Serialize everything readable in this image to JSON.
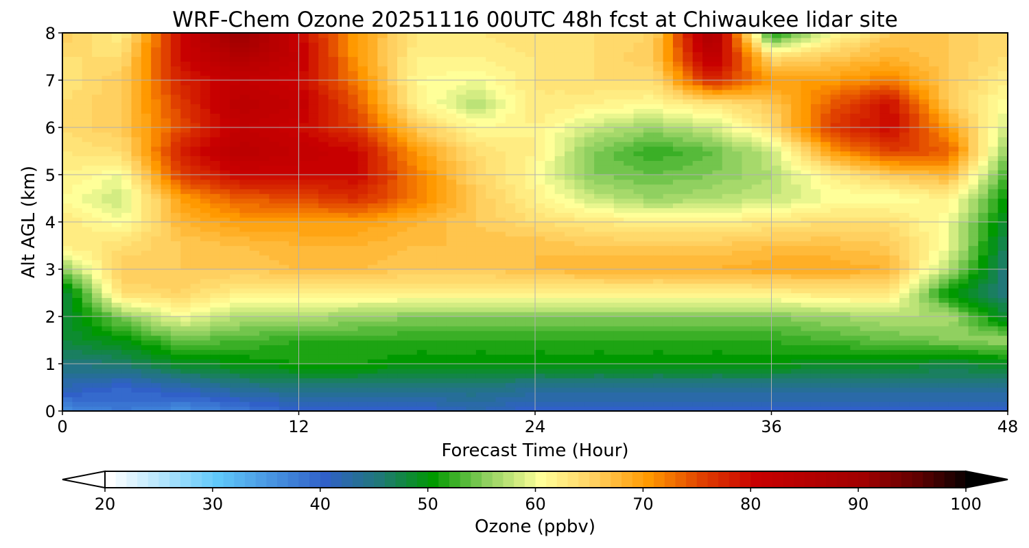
{
  "chart_data": {
    "type": "heatmap",
    "title": "WRF-Chem Ozone  20251116 00UTC 48h fcst at Chiwaukee lidar site",
    "xlabel": "Forecast Time (Hour)",
    "ylabel": "Alt AGL (km)",
    "xlim": [
      0,
      48
    ],
    "ylim": [
      0,
      8
    ],
    "xticks": [
      "0",
      "12",
      "24",
      "36",
      "48"
    ],
    "yticks": [
      "0",
      "1",
      "2",
      "3",
      "4",
      "5",
      "6",
      "7",
      "8"
    ],
    "grid": true,
    "x": [
      0,
      3,
      6,
      9,
      12,
      15,
      18,
      21,
      24,
      27,
      30,
      33,
      36,
      39,
      42,
      45,
      48
    ],
    "y": [
      0,
      0.5,
      1,
      1.5,
      2,
      2.5,
      3,
      3.5,
      4,
      4.5,
      5,
      5.5,
      6,
      6.5,
      7,
      7.5,
      8
    ],
    "z": [
      [
        36,
        38,
        36,
        38,
        40,
        40,
        40,
        42,
        40,
        40,
        40,
        40,
        40,
        40,
        40,
        40,
        40
      ],
      [
        42,
        40,
        42,
        44,
        45,
        45,
        45,
        45,
        44,
        44,
        44,
        44,
        44,
        44,
        44,
        44,
        44
      ],
      [
        45,
        46,
        49,
        50,
        51,
        51,
        50,
        50,
        50,
        50,
        50,
        50,
        50,
        49,
        49,
        48,
        49
      ],
      [
        48,
        50,
        54,
        53,
        52,
        52,
        52,
        52,
        52,
        52,
        52,
        52,
        52,
        53,
        54,
        55,
        56
      ],
      [
        48,
        55,
        60,
        57,
        57,
        56,
        55,
        55,
        55,
        55,
        55,
        55,
        55,
        56,
        57,
        57,
        48
      ],
      [
        47,
        64,
        65,
        62,
        62,
        62,
        62,
        62,
        62,
        62,
        62,
        62,
        62,
        63,
        63,
        50,
        45
      ],
      [
        55,
        66,
        66,
        66,
        67,
        67,
        66,
        66,
        67,
        68,
        68,
        68,
        69,
        69,
        68,
        57,
        45
      ],
      [
        62,
        64,
        66,
        67,
        68,
        68,
        67,
        67,
        67,
        66,
        66,
        66,
        67,
        67,
        66,
        60,
        46
      ],
      [
        63,
        60,
        68,
        70,
        70,
        70,
        68,
        66,
        64,
        63,
        62,
        62,
        63,
        64,
        64,
        60,
        48
      ],
      [
        61,
        58,
        70,
        74,
        75,
        77,
        72,
        66,
        62,
        58,
        56,
        57,
        58,
        60,
        60,
        62,
        50
      ],
      [
        62,
        60,
        76,
        80,
        80,
        80,
        72,
        65,
        61,
        55,
        54,
        55,
        57,
        62,
        66,
        68,
        52
      ],
      [
        63,
        64,
        78,
        84,
        82,
        80,
        70,
        64,
        62,
        55,
        52,
        54,
        58,
        70,
        76,
        74,
        55
      ],
      [
        64,
        66,
        75,
        82,
        80,
        76,
        66,
        61,
        62,
        58,
        56,
        58,
        64,
        76,
        80,
        70,
        58
      ],
      [
        64,
        66,
        76,
        84,
        82,
        74,
        62,
        57,
        63,
        62,
        61,
        63,
        66,
        74,
        80,
        66,
        60
      ],
      [
        63,
        66,
        78,
        82,
        80,
        72,
        61,
        60,
        63,
        64,
        64,
        78,
        70,
        70,
        72,
        66,
        62
      ],
      [
        64,
        64,
        80,
        86,
        82,
        70,
        62,
        62,
        63,
        64,
        66,
        84,
        64,
        66,
        68,
        66,
        64
      ],
      [
        66,
        62,
        80,
        92,
        80,
        70,
        63,
        63,
        64,
        64,
        65,
        88,
        50,
        60,
        66,
        66,
        64
      ]
    ],
    "colorbar": {
      "label": "Ozone  (ppbv)",
      "vmin": 20,
      "vmax": 100,
      "extend": "both",
      "ticks": [
        "20",
        "30",
        "40",
        "50",
        "60",
        "70",
        "80",
        "90",
        "100"
      ],
      "colormap": [
        [
          20,
          "#ffffff"
        ],
        [
          30,
          "#60c8fa"
        ],
        [
          40,
          "#3060c8"
        ],
        [
          45,
          "#207878"
        ],
        [
          50,
          "#009900"
        ],
        [
          55,
          "#90d060"
        ],
        [
          60,
          "#ffff99"
        ],
        [
          65,
          "#ffd060"
        ],
        [
          70,
          "#ff9900"
        ],
        [
          75,
          "#e04000"
        ],
        [
          80,
          "#c80000"
        ],
        [
          90,
          "#a00000"
        ],
        [
          95,
          "#600000"
        ],
        [
          100,
          "#000000"
        ]
      ]
    }
  }
}
